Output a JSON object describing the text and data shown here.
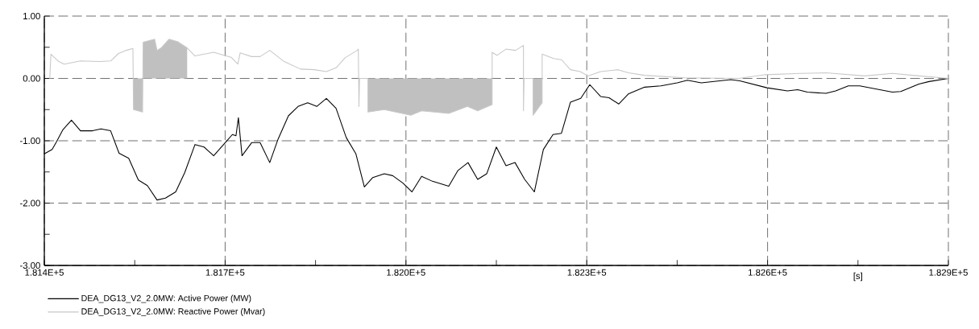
{
  "chart_data": {
    "type": "line",
    "xlabel": "[s]",
    "xlim": [
      181400,
      182900
    ],
    "ylim": [
      -3,
      1
    ],
    "xticks": [
      {
        "value": 181400,
        "label": "1.814E+5"
      },
      {
        "value": 181550,
        "label": null
      },
      {
        "value": 181700,
        "label": "1.817E+5"
      },
      {
        "value": 181850,
        "label": null
      },
      {
        "value": 182000,
        "label": "1.820E+5"
      },
      {
        "value": 182150,
        "label": null
      },
      {
        "value": 182300,
        "label": "1.823E+5"
      },
      {
        "value": 182450,
        "label": null
      },
      {
        "value": 182600,
        "label": "1.826E+5"
      },
      {
        "value": 182750,
        "label": null
      },
      {
        "value": 182900,
        "label": "1.829E+5"
      }
    ],
    "yticks": [
      {
        "value": -3,
        "label": "-3.00"
      },
      {
        "value": -2.5,
        "label": null
      },
      {
        "value": -2,
        "label": "-2.00"
      },
      {
        "value": -1.5,
        "label": null
      },
      {
        "value": -1,
        "label": "-1.00"
      },
      {
        "value": -0.5,
        "label": null
      },
      {
        "value": 0,
        "label": "0.00"
      },
      {
        "value": 0.5,
        "label": null
      },
      {
        "value": 1,
        "label": "1.00"
      }
    ],
    "grid": true,
    "line_style": "solid",
    "legend": "bottom",
    "series": [
      {
        "type": "area",
        "color": "#c0c0c0",
        "x": [
          181548,
          181548,
          181563,
          181563,
          181564,
          181564,
          181583,
          181587,
          181594,
          181607,
          181621,
          181637,
          181637,
          181937,
          181937,
          181964,
          182008,
          182026,
          182071,
          182102,
          182119,
          182143,
          182143,
          182211,
          182211,
          182226,
          182226
        ],
        "values": [
          0,
          -0.5,
          -0.54,
          0,
          0,
          0.58,
          0.63,
          0.45,
          0.49,
          0.63,
          0.59,
          0.49,
          0,
          0,
          -0.54,
          -0.5,
          -0.59,
          -0.52,
          -0.56,
          -0.45,
          -0.52,
          -0.42,
          0,
          0,
          -0.59,
          -0.39,
          0
        ]
      },
      {
        "name": "DEA_DG13_V2_2.0MW: Active Power (MW)",
        "color": "#000000",
        "x": [
          181400,
          181413,
          181420,
          181431,
          181445,
          181460,
          181480,
          181494,
          181510,
          181524,
          181540,
          181556,
          181571,
          181587,
          181601,
          181618,
          181633,
          181650,
          181665,
          181681,
          181701,
          181712,
          181718,
          181722,
          181728,
          181744,
          181758,
          181774,
          181788,
          181805,
          181821,
          181837,
          181852,
          181868,
          181884,
          181901,
          181917,
          181931,
          181945,
          181964,
          181978,
          181995,
          182010,
          182026,
          182044,
          182071,
          182086,
          182103,
          182119,
          182134,
          182150,
          182166,
          182181,
          182197,
          182213,
          182228,
          182244,
          182258,
          182273,
          182290,
          182305,
          182323,
          182337,
          182353,
          182369,
          182396,
          182423,
          182450,
          182467,
          182490,
          182539,
          182554,
          182599,
          182633,
          182650,
          182666,
          182697,
          182713,
          182734,
          182753,
          182807,
          182821,
          182851,
          182868,
          182900
        ],
        "values": [
          -1.21,
          -1.14,
          -1.02,
          -0.82,
          -0.67,
          -0.84,
          -0.84,
          -0.81,
          -0.84,
          -1.2,
          -1.28,
          -1.63,
          -1.72,
          -1.95,
          -1.92,
          -1.82,
          -1.51,
          -1.06,
          -1.1,
          -1.24,
          -1.02,
          -0.9,
          -0.92,
          -0.63,
          -1.24,
          -1.03,
          -1.03,
          -1.35,
          -0.97,
          -0.6,
          -0.45,
          -0.39,
          -0.45,
          -0.32,
          -0.48,
          -0.95,
          -1.21,
          -1.74,
          -1.59,
          -1.53,
          -1.56,
          -1.68,
          -1.82,
          -1.57,
          -1.65,
          -1.73,
          -1.48,
          -1.35,
          -1.62,
          -1.53,
          -1.1,
          -1.4,
          -1.35,
          -1.62,
          -1.82,
          -1.14,
          -0.9,
          -0.88,
          -0.38,
          -0.32,
          -0.1,
          -0.29,
          -0.31,
          -0.41,
          -0.25,
          -0.14,
          -0.12,
          -0.07,
          -0.03,
          -0.07,
          -0.02,
          -0.04,
          -0.15,
          -0.2,
          -0.18,
          -0.22,
          -0.24,
          -0.2,
          -0.12,
          -0.12,
          -0.22,
          -0.21,
          -0.09,
          -0.05,
          0
        ]
      },
      {
        "name": "DEA_DG13_V2_2.0MW: Reactive Power (Mvar)",
        "color": "#c8c8c8",
        "x": [
          181409,
          181411,
          181424,
          181433,
          181460,
          181491,
          181510,
          181523,
          181536,
          181547,
          181548,
          181563,
          181564,
          181583,
          181587,
          181594,
          181607,
          181621,
          181637,
          181650,
          181681,
          181710,
          181721,
          181725,
          181744,
          181758,
          181774,
          181798,
          181825,
          181848,
          181868,
          181884,
          181899,
          181919,
          181921,
          181922,
          181923,
          181937,
          181937,
          181964,
          182008,
          182026,
          182071,
          182102,
          182119,
          182143,
          182143,
          182151,
          182166,
          182182,
          182195,
          182195,
          182196,
          182211,
          182211,
          182226,
          182226,
          182245,
          182258,
          182273,
          182289,
          182302,
          182323,
          182352,
          182369,
          182396,
          182463,
          182552,
          182597,
          182654,
          182697,
          182761,
          182807,
          182841,
          182900
        ],
        "values": [
          0,
          0.39,
          0.27,
          0.23,
          0.28,
          0.27,
          0.28,
          0.4,
          0.45,
          0.48,
          -0.5,
          -0.54,
          0.58,
          0.63,
          0.45,
          0.49,
          0.63,
          0.59,
          0.49,
          0.36,
          0.42,
          0.34,
          0.23,
          0.41,
          0.35,
          0.35,
          0.45,
          0.27,
          0.15,
          0.14,
          0.11,
          0.17,
          0.33,
          0.45,
          0.47,
          -0.45,
          0,
          0,
          -0.54,
          -0.5,
          -0.59,
          -0.52,
          -0.56,
          -0.45,
          -0.52,
          -0.42,
          0.42,
          0.37,
          0.47,
          0.45,
          0.53,
          -0.52,
          0,
          0,
          -0.59,
          -0.39,
          0.39,
          0.32,
          0.3,
          0.14,
          0.11,
          0.04,
          0.11,
          0.14,
          0.09,
          0.05,
          0.01,
          0,
          0.06,
          0.08,
          0.09,
          0.04,
          0.08,
          0.05,
          0
        ]
      }
    ]
  }
}
